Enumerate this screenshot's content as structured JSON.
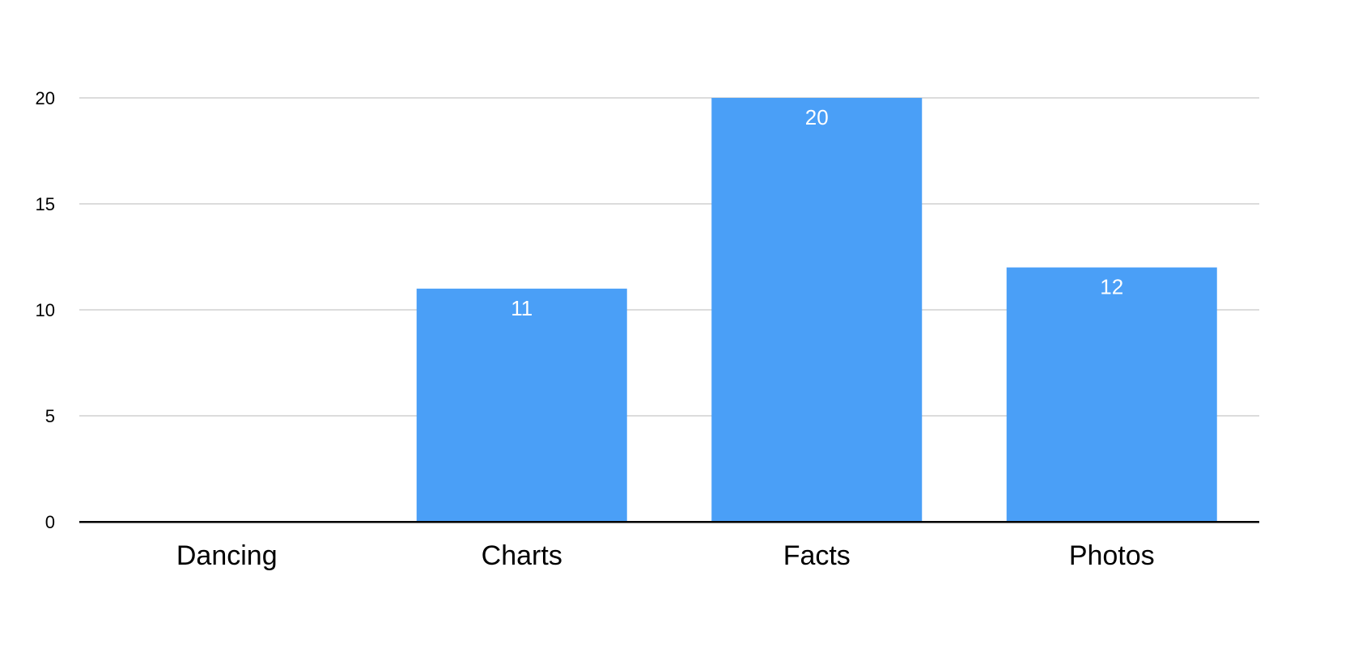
{
  "chart_data": {
    "type": "bar",
    "categories": [
      "Dancing",
      "Charts",
      "Facts",
      "Photos"
    ],
    "values": [
      0,
      11,
      20,
      12
    ],
    "data_labels": [
      "",
      "11",
      "20",
      "12"
    ],
    "y_ticks": [
      0,
      5,
      10,
      15,
      20
    ],
    "ylim": [
      0,
      20
    ],
    "grid": true,
    "legend": "none",
    "bar_color": "#4a9ff7",
    "title": "",
    "xlabel": "",
    "ylabel": ""
  }
}
